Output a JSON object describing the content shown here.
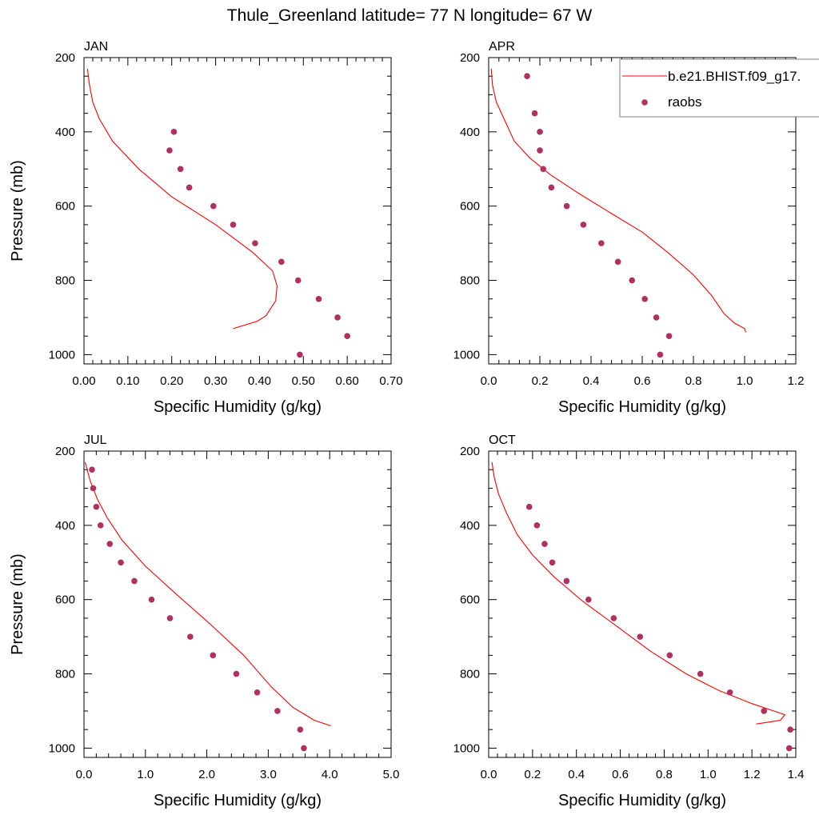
{
  "figure_title": "Thule_Greenland  latitude= 77 N longitude= 67 W",
  "colors": {
    "model": "#ff0000",
    "obs": "#b03060",
    "axis": "#000000",
    "legend_border": "#7f7f7f"
  },
  "legend": {
    "position": "top-right",
    "entries": [
      {
        "label": "b.e21.BHIST.f09_g17.",
        "style": "line"
      },
      {
        "label": "raobs",
        "style": "marker"
      }
    ]
  },
  "chart_data": [
    {
      "type": "line",
      "panel": "JAN",
      "title": "JAN",
      "xlabel": "Specific Humidity (g/kg)",
      "ylabel": "Pressure (mb)",
      "xlim": [
        0,
        0.7
      ],
      "ylim": [
        200,
        1025
      ],
      "y_inverted": true,
      "xticks": [
        "0.00",
        "0.10",
        "0.20",
        "0.30",
        "0.40",
        "0.50",
        "0.60",
        "0.70"
      ],
      "xtick_values": [
        0,
        0.1,
        0.2,
        0.3,
        0.4,
        0.5,
        0.6,
        0.7
      ],
      "yticks": [
        "200",
        "400",
        "600",
        "800",
        "1000"
      ],
      "ytick_values": [
        200,
        400,
        600,
        800,
        1000
      ],
      "series": [
        {
          "name": "b.e21.BHIST.f09_g17.",
          "kind": "line",
          "x": [
            0.008,
            0.012,
            0.02,
            0.035,
            0.065,
            0.125,
            0.2,
            0.3,
            0.385,
            0.43,
            0.44,
            0.437,
            0.415,
            0.395,
            0.34
          ],
          "y": [
            230,
            270,
            320,
            365,
            425,
            500,
            575,
            650,
            725,
            775,
            815,
            855,
            895,
            910,
            930
          ]
        },
        {
          "name": "raobs",
          "kind": "scatter",
          "x": [
            0.205,
            0.195,
            0.22,
            0.24,
            0.295,
            0.34,
            0.39,
            0.45,
            0.488,
            0.535,
            0.578,
            0.6,
            0.492
          ],
          "y": [
            400,
            450,
            500,
            550,
            600,
            650,
            700,
            750,
            800,
            850,
            900,
            950,
            1000
          ]
        }
      ]
    },
    {
      "type": "line",
      "panel": "APR",
      "title": "APR",
      "xlabel": "Specific Humidity (g/kg)",
      "ylabel": "",
      "xlim": [
        0,
        1.2
      ],
      "ylim": [
        200,
        1025
      ],
      "y_inverted": true,
      "xticks": [
        "0.0",
        "0.2",
        "0.4",
        "0.6",
        "0.8",
        "1.0",
        "1.2"
      ],
      "xtick_values": [
        0,
        0.2,
        0.4,
        0.6,
        0.8,
        1.0,
        1.2
      ],
      "yticks": [
        "200",
        "400",
        "600",
        "800",
        "1000"
      ],
      "ytick_values": [
        200,
        400,
        600,
        800,
        1000
      ],
      "series": [
        {
          "name": "b.e21.BHIST.f09_g17.",
          "kind": "line",
          "x": [
            0.01,
            0.015,
            0.03,
            0.06,
            0.1,
            0.16,
            0.24,
            0.35,
            0.48,
            0.6,
            0.7,
            0.8,
            0.87,
            0.92,
            0.96,
            1.0,
            1.005
          ],
          "y": [
            230,
            275,
            320,
            365,
            425,
            470,
            515,
            565,
            620,
            670,
            725,
            785,
            840,
            890,
            915,
            930,
            940
          ]
        },
        {
          "name": "raobs",
          "kind": "scatter",
          "x": [
            0.15,
            0.18,
            0.2,
            0.2,
            0.213,
            0.245,
            0.305,
            0.37,
            0.44,
            0.505,
            0.56,
            0.61,
            0.655,
            0.705,
            0.67
          ],
          "y": [
            250,
            350,
            400,
            450,
            500,
            550,
            600,
            650,
            700,
            750,
            800,
            850,
            900,
            950,
            1000
          ]
        }
      ]
    },
    {
      "type": "line",
      "panel": "JUL",
      "title": "JUL",
      "xlabel": "Specific Humidity (g/kg)",
      "ylabel": "Pressure (mb)",
      "xlim": [
        0,
        5.0
      ],
      "ylim": [
        200,
        1025
      ],
      "y_inverted": true,
      "xticks": [
        "0.0",
        "1.0",
        "2.0",
        "3.0",
        "4.0",
        "5.0"
      ],
      "xtick_values": [
        0,
        1,
        2,
        3,
        4,
        5
      ],
      "yticks": [
        "200",
        "400",
        "600",
        "800",
        "1000"
      ],
      "ytick_values": [
        200,
        400,
        600,
        800,
        1000
      ],
      "series": [
        {
          "name": "b.e21.BHIST.f09_g17.",
          "kind": "line",
          "x": [
            0.02,
            0.1,
            0.22,
            0.38,
            0.62,
            1.0,
            1.5,
            2.05,
            2.6,
            3.05,
            3.4,
            3.75,
            4.02
          ],
          "y": [
            230,
            280,
            330,
            380,
            440,
            510,
            585,
            665,
            750,
            835,
            890,
            925,
            940
          ]
        },
        {
          "name": "raobs",
          "kind": "scatter",
          "x": [
            0.13,
            0.15,
            0.2,
            0.27,
            0.42,
            0.6,
            0.82,
            1.1,
            1.4,
            1.73,
            2.1,
            2.48,
            2.82,
            3.15,
            3.52,
            3.58
          ],
          "y": [
            250,
            300,
            350,
            400,
            450,
            500,
            550,
            600,
            650,
            700,
            750,
            800,
            850,
            900,
            950,
            1000
          ]
        }
      ]
    },
    {
      "type": "line",
      "panel": "OCT",
      "title": "OCT",
      "xlabel": "Specific Humidity (g/kg)",
      "ylabel": "",
      "xlim": [
        0,
        1.4
      ],
      "ylim": [
        200,
        1025
      ],
      "y_inverted": true,
      "xticks": [
        "0.0",
        "0.2",
        "0.4",
        "0.6",
        "0.8",
        "1.0",
        "1.2",
        "1.4"
      ],
      "xtick_values": [
        0,
        0.2,
        0.4,
        0.6,
        0.8,
        1.0,
        1.2,
        1.4
      ],
      "yticks": [
        "200",
        "400",
        "600",
        "800",
        "1000"
      ],
      "ytick_values": [
        200,
        400,
        600,
        800,
        1000
      ],
      "series": [
        {
          "name": "b.e21.BHIST.f09_g17.",
          "kind": "line",
          "x": [
            0.015,
            0.025,
            0.045,
            0.08,
            0.13,
            0.2,
            0.3,
            0.43,
            0.58,
            0.74,
            0.9,
            1.05,
            1.2,
            1.3,
            1.35,
            1.33,
            1.22
          ],
          "y": [
            230,
            270,
            315,
            365,
            425,
            480,
            540,
            605,
            670,
            740,
            800,
            845,
            880,
            900,
            910,
            925,
            935
          ]
        },
        {
          "name": "raobs",
          "kind": "scatter",
          "x": [
            0.185,
            0.22,
            0.255,
            0.29,
            0.355,
            0.455,
            0.57,
            0.69,
            0.825,
            0.965,
            1.1,
            1.255,
            1.375,
            1.37
          ],
          "y": [
            350,
            400,
            450,
            500,
            550,
            600,
            650,
            700,
            750,
            800,
            850,
            900,
            950,
            1000
          ]
        }
      ]
    }
  ]
}
